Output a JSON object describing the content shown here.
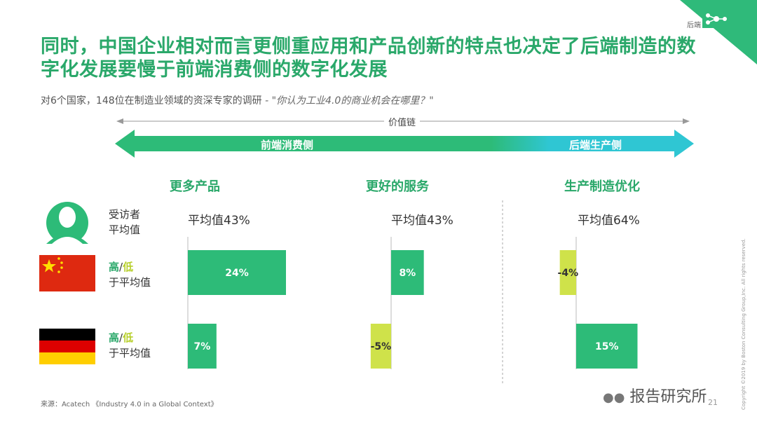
{
  "header": {
    "title": "同时，中国企业相对而言更侧重应用和产品创新的特点也决定了后端制造的数字化发展要慢于前端消费侧的数字化发展",
    "subtitle": "对6个国家，148位在制造业领域的资深专家的调研",
    "subtitle_quote": " - \"你认为工业4.0的商业机会在哪里？\"",
    "corner_label": "后端"
  },
  "value_chain": {
    "label": "价值链",
    "front": "前端消费侧",
    "back": "后端生产侧"
  },
  "rows": {
    "respondent": "受访者\n平均值",
    "country_label_hi": "高",
    "country_label_sep": "/",
    "country_label_lo": "低",
    "country_label_rest": "于平均值"
  },
  "colors": {
    "green": "#2dbb78",
    "lime": "#cfe24a",
    "teal": "#2fc6d3",
    "title": "#2aa86a"
  },
  "chart_data": {
    "type": "bar",
    "categories": [
      "更多产品",
      "更好的服务",
      "生产制造优化"
    ],
    "averages": [
      "平均值43%",
      "平均值43%",
      "平均值64%"
    ],
    "series": [
      {
        "name": "China",
        "values": [
          24,
          8,
          -4
        ],
        "labels": [
          "24%",
          "8%",
          "-4%"
        ]
      },
      {
        "name": "Germany",
        "values": [
          7,
          -5,
          15
        ],
        "labels": [
          "7%",
          "-5%",
          "15%"
        ]
      }
    ]
  },
  "footer": {
    "source": "来源：Acatech 《Industry 4.0 in a Global Context》",
    "brand": "报告研究所",
    "page": "21",
    "copyright": "Copyright ©2019 by Boston Consulting Group,Inc. All rights reserved."
  }
}
